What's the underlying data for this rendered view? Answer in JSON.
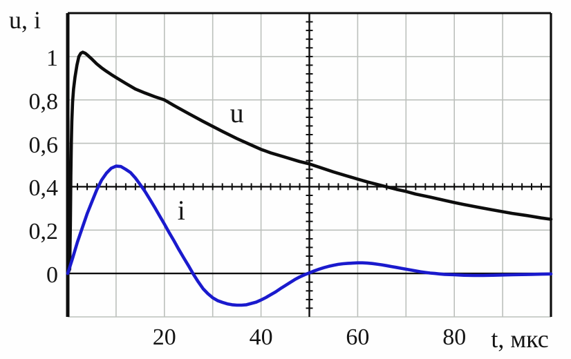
{
  "chart_data": {
    "type": "line",
    "title": "",
    "y_axis_label": "u, i",
    "x_axis_label": "t, мкс",
    "x_range": [
      0,
      100
    ],
    "y_range": [
      -0.2,
      1.2
    ],
    "grid": {
      "on": true,
      "x_step": 10,
      "y_step": 0.2,
      "color": "#bcc0bc"
    },
    "axes": {
      "color": "#0d0d0d",
      "center_horizontal_at_y": 0.4,
      "center_horizontal_minor_tick_step": 2,
      "center_vertical_at_x": 50,
      "center_vertical_minor_tick_step": 0.04,
      "zero_line_at_y": 0
    },
    "x_ticks": [
      {
        "value": 20,
        "label": "20"
      },
      {
        "value": 40,
        "label": "40"
      },
      {
        "value": 60,
        "label": "60"
      },
      {
        "value": 80,
        "label": "80"
      }
    ],
    "y_ticks": [
      {
        "value": 1.0,
        "label": "1"
      },
      {
        "value": 0.8,
        "label": "0,8"
      },
      {
        "value": 0.6,
        "label": "0,6"
      },
      {
        "value": 0.4,
        "label": "0,4"
      },
      {
        "value": 0.2,
        "label": "0,2"
      },
      {
        "value": 0.0,
        "label": "0"
      }
    ],
    "legend_position": "inline-curve-labels",
    "series": [
      {
        "name": "u",
        "color": "#0d0d0d",
        "label": {
          "text": "u",
          "x": 35,
          "y": 0.74
        },
        "points": [
          [
            0,
            0
          ],
          [
            0.4,
            0.02
          ],
          [
            0.55,
            0.22
          ],
          [
            0.65,
            0.45
          ],
          [
            0.75,
            0.6
          ],
          [
            0.85,
            0.7
          ],
          [
            1.0,
            0.79
          ],
          [
            1.2,
            0.85
          ],
          [
            1.5,
            0.905
          ],
          [
            1.9,
            0.96
          ],
          [
            2.3,
            1.0
          ],
          [
            2.7,
            1.015
          ],
          [
            3.1,
            1.02
          ],
          [
            3.6,
            1.015
          ],
          [
            4,
            1.008
          ],
          [
            5,
            0.988
          ],
          [
            6,
            0.966
          ],
          [
            7,
            0.948
          ],
          [
            8,
            0.932
          ],
          [
            9,
            0.917
          ],
          [
            10,
            0.903
          ],
          [
            12,
            0.876
          ],
          [
            14,
            0.85
          ],
          [
            16,
            0.832
          ],
          [
            18,
            0.815
          ],
          [
            20,
            0.8
          ],
          [
            22,
            0.774
          ],
          [
            25,
            0.737
          ],
          [
            28,
            0.701
          ],
          [
            30,
            0.678
          ],
          [
            32,
            0.655
          ],
          [
            35,
            0.622
          ],
          [
            38,
            0.592
          ],
          [
            40,
            0.572
          ],
          [
            42,
            0.556
          ],
          [
            45,
            0.536
          ],
          [
            48,
            0.516
          ],
          [
            50,
            0.505
          ],
          [
            52,
            0.49
          ],
          [
            55,
            0.468
          ],
          [
            58,
            0.448
          ],
          [
            60,
            0.435
          ],
          [
            62,
            0.422
          ],
          [
            65,
            0.405
          ],
          [
            68,
            0.388
          ],
          [
            70,
            0.378
          ],
          [
            72,
            0.366
          ],
          [
            75,
            0.352
          ],
          [
            78,
            0.337
          ],
          [
            80,
            0.327
          ],
          [
            82,
            0.318
          ],
          [
            85,
            0.305
          ],
          [
            88,
            0.293
          ],
          [
            90,
            0.285
          ],
          [
            92,
            0.277
          ],
          [
            95,
            0.267
          ],
          [
            98,
            0.256
          ],
          [
            100,
            0.25
          ]
        ]
      },
      {
        "name": "i",
        "color": "#1a1acd",
        "label": {
          "text": "i",
          "x": 23.5,
          "y": 0.29
        },
        "points": [
          [
            0,
            0
          ],
          [
            1,
            0.07
          ],
          [
            2,
            0.145
          ],
          [
            3,
            0.21
          ],
          [
            4,
            0.275
          ],
          [
            5,
            0.33
          ],
          [
            6,
            0.385
          ],
          [
            7,
            0.43
          ],
          [
            8,
            0.462
          ],
          [
            9,
            0.485
          ],
          [
            10,
            0.495
          ],
          [
            11,
            0.493
          ],
          [
            12,
            0.48
          ],
          [
            13,
            0.465
          ],
          [
            14,
            0.44
          ],
          [
            15,
            0.41
          ],
          [
            16,
            0.378
          ],
          [
            17,
            0.342
          ],
          [
            18,
            0.305
          ],
          [
            19,
            0.266
          ],
          [
            20,
            0.228
          ],
          [
            21,
            0.188
          ],
          [
            22,
            0.15
          ],
          [
            23,
            0.11
          ],
          [
            24,
            0.072
          ],
          [
            25,
            0.035
          ],
          [
            26,
            -0.003
          ],
          [
            27,
            -0.038
          ],
          [
            28,
            -0.07
          ],
          [
            29,
            -0.093
          ],
          [
            30,
            -0.112
          ],
          [
            31,
            -0.125
          ],
          [
            32,
            -0.133
          ],
          [
            33,
            -0.14
          ],
          [
            34,
            -0.144
          ],
          [
            35,
            -0.146
          ],
          [
            36,
            -0.146
          ],
          [
            37,
            -0.144
          ],
          [
            38,
            -0.138
          ],
          [
            39,
            -0.132
          ],
          [
            40,
            -0.122
          ],
          [
            41,
            -0.111
          ],
          [
            42,
            -0.098
          ],
          [
            43,
            -0.085
          ],
          [
            44,
            -0.07
          ],
          [
            45,
            -0.056
          ],
          [
            46,
            -0.042
          ],
          [
            47,
            -0.028
          ],
          [
            48,
            -0.016
          ],
          [
            49,
            -0.006
          ],
          [
            50,
            0.003
          ],
          [
            51,
            0.012
          ],
          [
            52,
            0.02
          ],
          [
            53,
            0.027
          ],
          [
            54,
            0.033
          ],
          [
            55,
            0.038
          ],
          [
            56,
            0.042
          ],
          [
            57,
            0.045
          ],
          [
            58,
            0.047
          ],
          [
            59,
            0.048
          ],
          [
            60,
            0.049
          ],
          [
            61,
            0.049
          ],
          [
            62,
            0.048
          ],
          [
            63,
            0.046
          ],
          [
            64,
            0.043
          ],
          [
            65,
            0.04
          ],
          [
            66,
            0.036
          ],
          [
            67,
            0.032
          ],
          [
            68,
            0.028
          ],
          [
            69,
            0.024
          ],
          [
            70,
            0.02
          ],
          [
            71,
            0.016
          ],
          [
            72,
            0.012
          ],
          [
            73,
            0.008
          ],
          [
            74,
            0.005
          ],
          [
            75,
            0.002
          ],
          [
            76,
            0
          ],
          [
            77,
            -0.002
          ],
          [
            78,
            -0.004
          ],
          [
            80,
            -0.006
          ],
          [
            82,
            -0.008
          ],
          [
            84,
            -0.009
          ],
          [
            86,
            -0.009
          ],
          [
            88,
            -0.008
          ],
          [
            90,
            -0.007
          ],
          [
            92,
            -0.006
          ],
          [
            94,
            -0.005
          ],
          [
            96,
            -0.004
          ],
          [
            98,
            -0.003
          ],
          [
            100,
            -0.002
          ]
        ]
      }
    ],
    "plot_frame": {
      "border_color": "#0d0d0d",
      "bottom_border_color": "#bcc0bc"
    }
  }
}
